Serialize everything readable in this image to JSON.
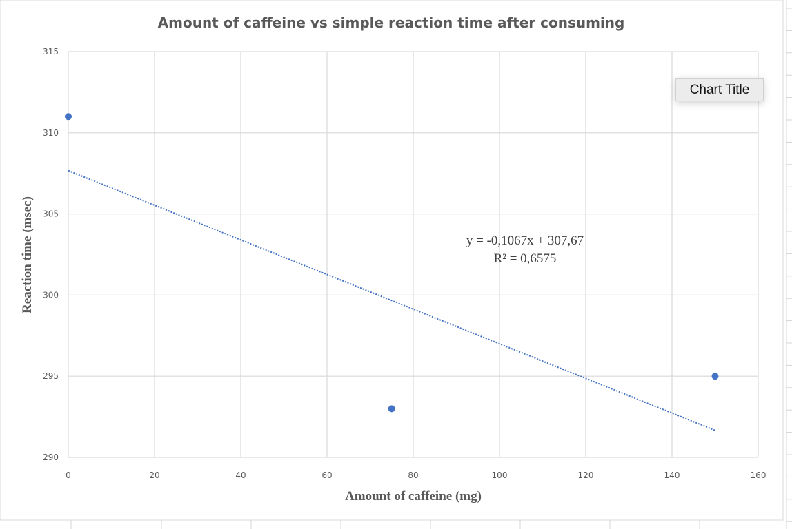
{
  "chart_data": {
    "type": "scatter",
    "title": "Amount of caffeine vs simple reaction time after consuming",
    "xlabel": "Amount of caffeine (mg)",
    "ylabel": "Reaction time (msec)",
    "xlim": [
      0,
      160
    ],
    "ylim": [
      290,
      315
    ],
    "xticks": [
      "0",
      "20",
      "40",
      "60",
      "80",
      "100",
      "120",
      "140",
      "160"
    ],
    "yticks": [
      "290",
      "295",
      "300",
      "305",
      "310",
      "315"
    ],
    "grid": true,
    "points": [
      {
        "x": 0,
        "y": 311
      },
      {
        "x": 75,
        "y": 293
      },
      {
        "x": 150,
        "y": 295
      }
    ],
    "trendline": {
      "type": "linear",
      "style": "dotted",
      "slope": -0.1067,
      "intercept": 307.67,
      "x_range": [
        0,
        150
      ],
      "equation_label": "y = -0,1067x + 307,67",
      "r2_label": "R² = 0,6575"
    },
    "colors": {
      "marker": "#4472c4",
      "trendline": "#4472c4",
      "grid": "#d9d9d9"
    }
  },
  "overlay": {
    "chart_title_button": "Chart Title"
  }
}
